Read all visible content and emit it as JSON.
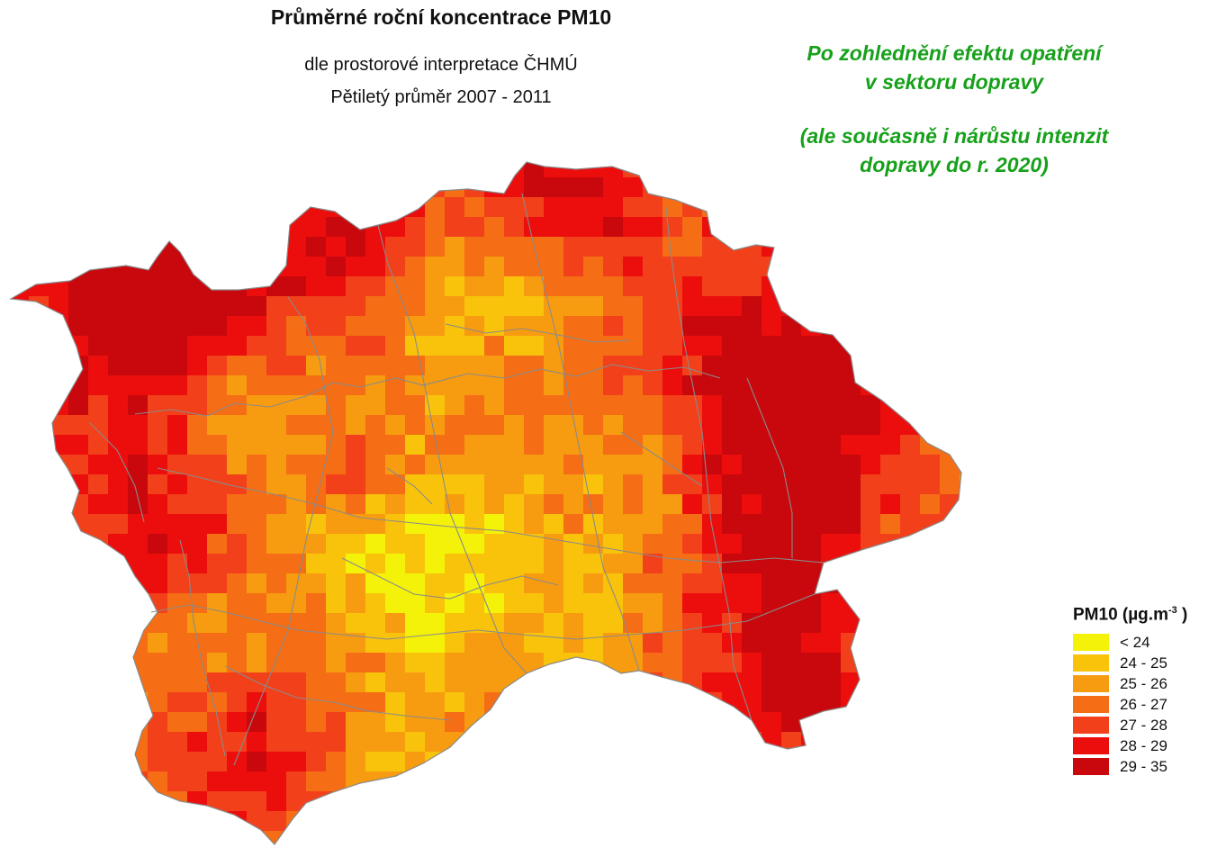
{
  "header": {
    "title": "Průměrné roční koncentrace PM10",
    "subtitle_1": "dle prostorové interpretace ČHMÚ",
    "subtitle_2": "Pětiletý průměr 2007 - 2011"
  },
  "note": {
    "line_1": "Po zohlednění efektu opatření",
    "line_2": "v sektoru dopravy",
    "line_3": "(ale současně i nárůstu intenzit",
    "line_4": "dopravy do r. 2020)"
  },
  "legend": {
    "title": "PM10 (µg.m",
    "title_sup": "-3",
    "title_end": " )",
    "classes": [
      {
        "label": "< 24",
        "color": "#f5f20a"
      },
      {
        "label": "24 - 25",
        "color": "#f9c30c"
      },
      {
        "label": "25 - 26",
        "color": "#f79c10"
      },
      {
        "label": "26 - 27",
        "color": "#f56d14"
      },
      {
        "label": "27 - 28",
        "color": "#f2401a"
      },
      {
        "label": "28 - 29",
        "color": "#ec0d0d"
      },
      {
        "label": "29 - 35",
        "color": "#c8080c"
      }
    ]
  },
  "colors": {
    "boundary_lines": "#8a8a8a",
    "note_text": "#17a11b"
  }
}
